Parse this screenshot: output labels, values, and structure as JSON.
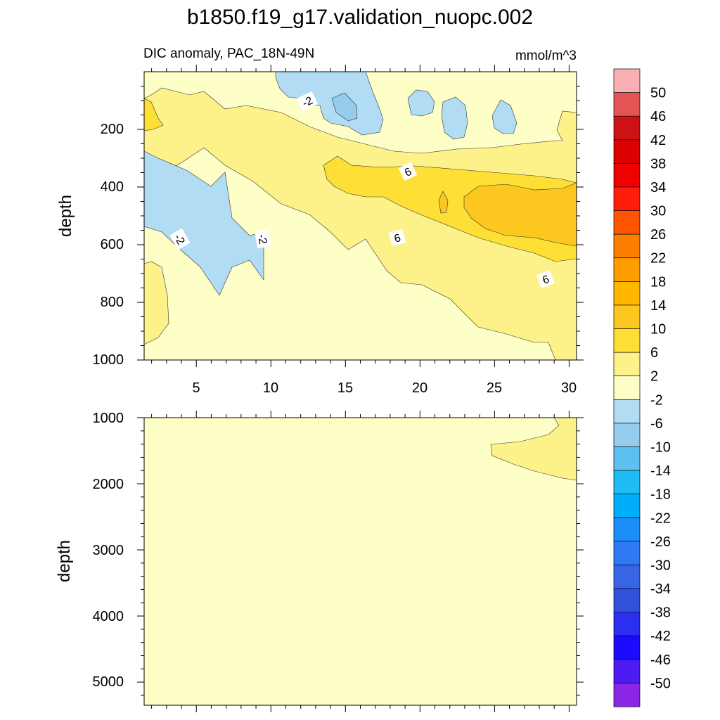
{
  "chart_data": {
    "type": "contour",
    "title": "b1850.f19_g17.validation_nuopc.002",
    "subtitle_left": "DIC anomaly, PAC_18N-49N",
    "units": "mmol/m^3",
    "colorbar": {
      "levels": [
        "50",
        "46",
        "42",
        "38",
        "34",
        "30",
        "26",
        "22",
        "18",
        "14",
        "10",
        "6",
        "2",
        "-2",
        "-6",
        "-10",
        "-14",
        "-18",
        "-22",
        "-26",
        "-30",
        "-34",
        "-38",
        "-42",
        "-46",
        "-50"
      ],
      "colors": [
        "#fbb1b4",
        "#e35454",
        "#cc1214",
        "#dd0000",
        "#f10000",
        "#ff1e0a",
        "#fd5500",
        "#fe7e00",
        "#ff9e00",
        "#ffb700",
        "#fcc820",
        "#fddf35",
        "#fdf28a",
        "#fefec7",
        "#b1dcf3",
        "#95cbec",
        "#5ec0f0",
        "#1fbbf3",
        "#00adf9",
        "#1c8ef8",
        "#2f79f5",
        "#3864e6",
        "#3350dd",
        "#2a2ff0",
        "#1c0cfd",
        "#4c1cf2",
        "#8c26e6"
      ]
    },
    "panels": [
      {
        "name": "upper",
        "ylabel": "depth",
        "ylim": [
          0,
          1000
        ],
        "y_ticks": [
          "200",
          "400",
          "600",
          "800",
          "1000"
        ],
        "xlim": [
          1.5,
          30.5
        ],
        "x_ticks": [
          "5",
          "10",
          "15",
          "20",
          "25",
          "30"
        ],
        "contour_labels": [
          "-2",
          "6",
          "-2",
          "-2",
          "6",
          "6"
        ]
      },
      {
        "name": "lower",
        "ylabel": "depth",
        "ylim": [
          1000,
          5350
        ],
        "y_ticks": [
          "1000",
          "2000",
          "3000",
          "4000",
          "5000"
        ],
        "xlim": [
          1.5,
          30.5
        ]
      }
    ]
  }
}
